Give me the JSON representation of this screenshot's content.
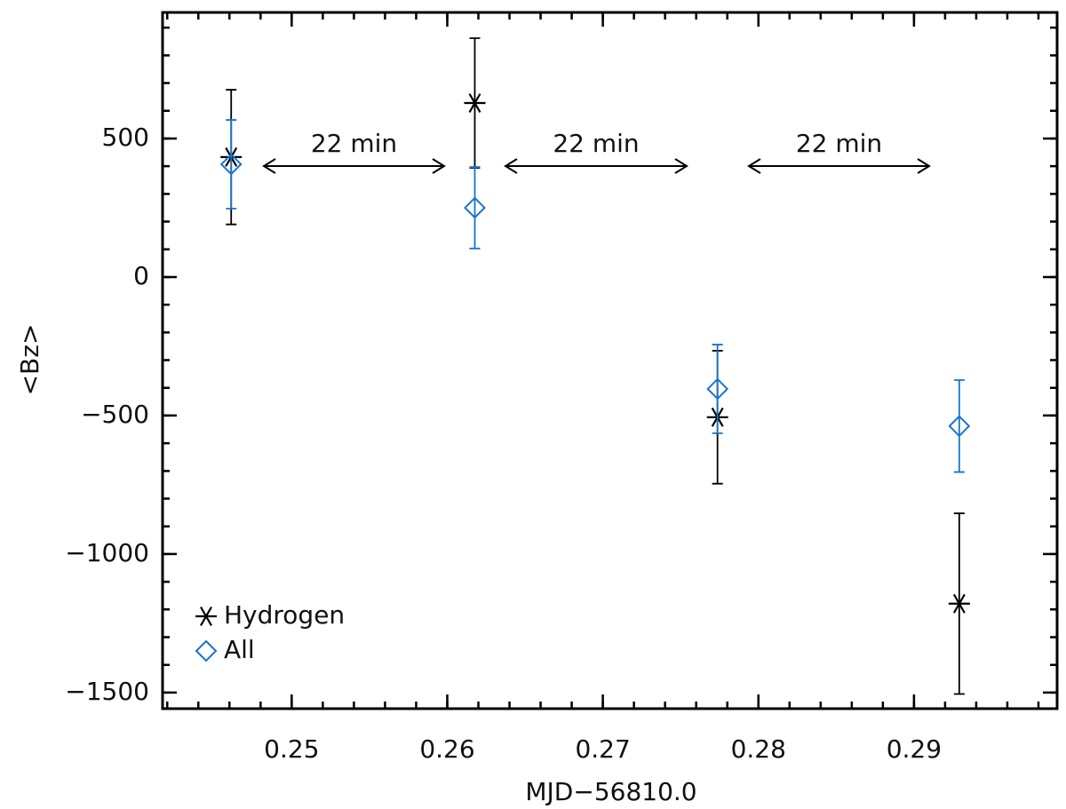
{
  "chart_data": {
    "type": "scatter",
    "xlabel": "MJD−56810.0",
    "ylabel": "<Bz>",
    "xlim": [
      0.2417,
      0.2992
    ],
    "ylim": [
      -1558,
      955
    ],
    "xticks": [
      0.25,
      0.26,
      0.27,
      0.28,
      0.29
    ],
    "yticks": [
      {
        "value": -1500,
        "label": "−1500"
      },
      {
        "value": -1000,
        "label": "−1000"
      },
      {
        "value": -500,
        "label": "−500"
      },
      0,
      500
    ],
    "legend": "lower left",
    "annotations": [
      "22 min",
      "22 min",
      "22 min"
    ],
    "series": [
      {
        "name": "Hydrogen",
        "color": "#000000",
        "marker": "asterisk",
        "x": [
          0.24611,
          0.26177,
          0.27737,
          0.29291
        ],
        "values": [
          433,
          628,
          -506,
          -1179
        ],
        "errors": [
          243,
          234,
          240,
          326
        ]
      },
      {
        "name": "All",
        "color": "#1874cd",
        "marker": "diamond",
        "x": [
          0.24611,
          0.26177,
          0.27737,
          0.29291
        ],
        "values": [
          407,
          250,
          -404,
          -538
        ],
        "errors": [
          160,
          147,
          160,
          166
        ]
      }
    ]
  }
}
